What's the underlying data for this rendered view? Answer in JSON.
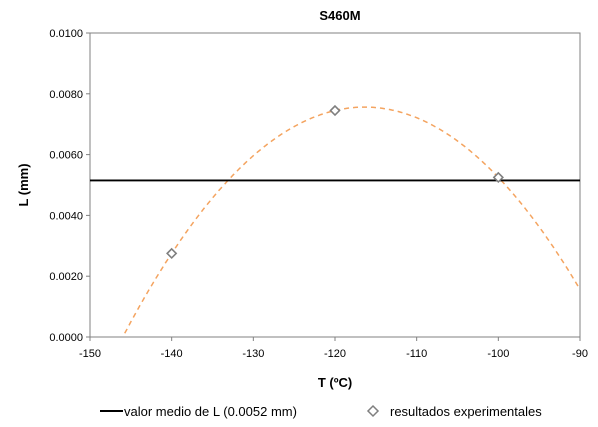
{
  "chart_data": {
    "type": "scatter",
    "title": "S460M",
    "xlabel": "T (ºC)",
    "ylabel": "L (mm)",
    "xlim": [
      -150,
      -90
    ],
    "ylim": [
      0.0,
      0.01
    ],
    "x_ticks": [
      -150,
      -140,
      -130,
      -120,
      -110,
      -100,
      -90
    ],
    "y_ticks": [
      0.0,
      0.002,
      0.004,
      0.006,
      0.008,
      0.01
    ],
    "x_tick_labels": [
      "-150",
      "-140",
      "-130",
      "-120",
      "-110",
      "-100",
      "-90"
    ],
    "y_tick_labels": [
      "0.0000",
      "0.0020",
      "0.0040",
      "0.0060",
      "0.0080",
      "0.0100"
    ],
    "grid": false,
    "legend_position": "bottom",
    "series": [
      {
        "name": "resultados experimentales",
        "type": "scatter",
        "marker": "diamond",
        "color": "#7f7f7f",
        "x": [
          -140,
          -120,
          -100
        ],
        "y": [
          0.00275,
          0.00745,
          0.00525
        ]
      },
      {
        "name": "valor medio de L (0.0052 mm)",
        "type": "line",
        "color": "#000000",
        "x": [
          -150,
          -90
        ],
        "y": [
          0.00515,
          0.00515
        ]
      },
      {
        "name": "",
        "type": "line",
        "style": "dashed",
        "color": "#f4a460",
        "x": [
          -146,
          -145,
          -144,
          -143,
          -142,
          -141,
          -140,
          -139,
          -138,
          -137,
          -136,
          -135,
          -134,
          -133,
          -132,
          -131,
          -130,
          -129,
          -128,
          -127,
          -126,
          -125,
          -124,
          -123,
          -122,
          -121,
          -120,
          -119,
          -118,
          -117,
          -116,
          -115,
          -114,
          -113,
          -112,
          -111,
          -110,
          -109,
          -108,
          -107,
          -106,
          -105,
          -104,
          -103,
          -102,
          -101,
          -100,
          -99,
          -98,
          -97,
          -96,
          -95,
          -94,
          -93,
          -92,
          -91,
          -90
        ],
        "y": [
          0.0,
          0.00052,
          0.00101,
          0.00148,
          0.00193,
          0.00235,
          0.00275,
          0.00313,
          0.00348,
          0.0038,
          0.00411,
          0.00438,
          0.00464,
          0.00487,
          0.00508,
          0.00526,
          0.00542,
          0.00556,
          0.00567,
          0.00576,
          0.00582,
          0.00586,
          0.00588,
          0.00587,
          0.00584,
          0.00579,
          0.00745,
          0.00751,
          0.00755,
          0.00757,
          0.00757,
          0.00755,
          0.00751,
          0.00745,
          0.00737,
          0.00727,
          0.00715,
          0.00701,
          0.00685,
          0.00667,
          0.00647,
          0.00624,
          0.006,
          0.00574,
          0.00545,
          0.00515,
          0.00525,
          0.00492,
          0.00457,
          0.0042,
          0.00381,
          0.0034,
          0.00297,
          0.00252,
          0.00205,
          0.00155,
          0.00104
        ]
      }
    ]
  },
  "legend": {
    "line_label": "valor medio de L (0.0052 mm)",
    "marker_label": "resultados experimentales"
  },
  "colors": {
    "axis": "#000000",
    "plot_border": "#808080",
    "mean_line": "#000000",
    "fit_curve": "#f4a460",
    "marker": "#7f7f7f"
  }
}
